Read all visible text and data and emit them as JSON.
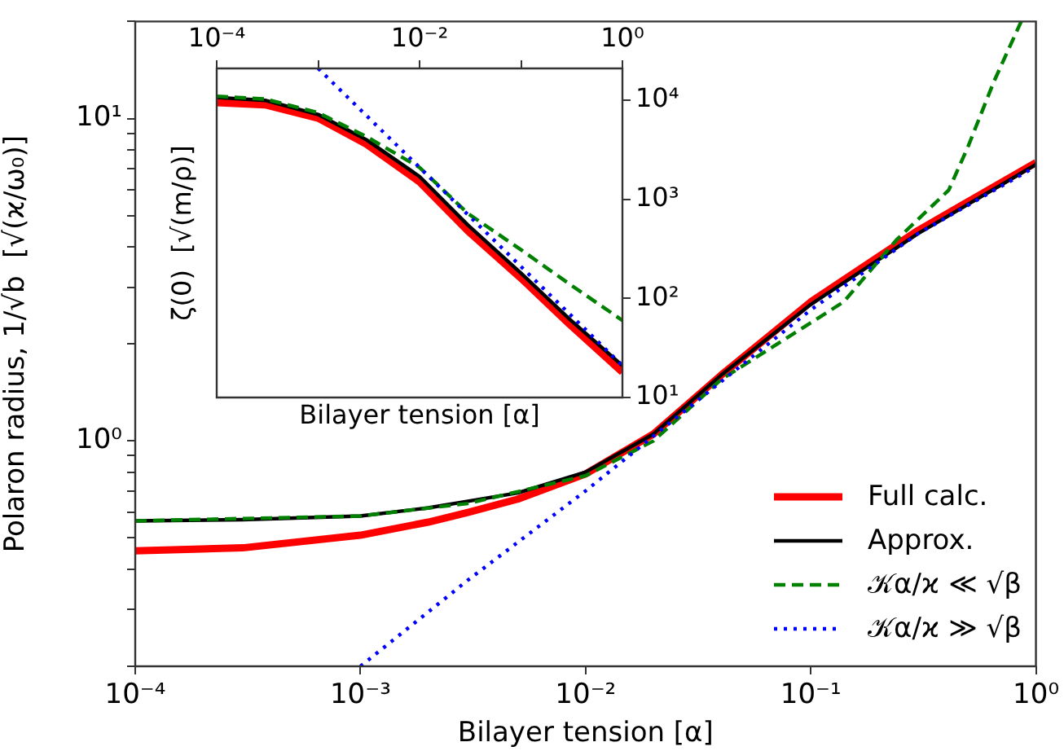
{
  "chart_data": [
    {
      "type": "line",
      "xlabel": "Bilayer tension [α]",
      "ylabel": "Polaron radius, 1/√b  [√(ϰ/ω₀)]",
      "log": "xy",
      "grid": false,
      "legend": "bottom right",
      "marker": "none",
      "xlim": [
        0.0001,
        1
      ],
      "ylim": [
        0.2,
        20
      ],
      "xticks": [
        {
          "value": 0.0001,
          "label": "10⁻⁴"
        },
        {
          "value": 0.001,
          "label": "10⁻³"
        },
        {
          "value": 0.01,
          "label": "10⁻²"
        },
        {
          "value": 0.1,
          "label": "10⁻¹"
        },
        {
          "value": 1,
          "label": "10⁰"
        }
      ],
      "yticks": [
        {
          "value": 0.2,
          "label": null
        },
        {
          "value": 0.3,
          "label": null
        },
        {
          "value": 0.4,
          "label": null
        },
        {
          "value": 0.5,
          "label": null
        },
        {
          "value": 0.6,
          "label": null
        },
        {
          "value": 0.7,
          "label": null
        },
        {
          "value": 0.8,
          "label": null
        },
        {
          "value": 0.9,
          "label": null
        },
        {
          "value": 1,
          "label": "10⁰"
        },
        {
          "value": 2,
          "label": null
        },
        {
          "value": 3,
          "label": null
        },
        {
          "value": 4,
          "label": null
        },
        {
          "value": 5,
          "label": null
        },
        {
          "value": 6,
          "label": null
        },
        {
          "value": 7,
          "label": null
        },
        {
          "value": 8,
          "label": null
        },
        {
          "value": 9,
          "label": null
        },
        {
          "value": 10,
          "label": "10¹"
        },
        {
          "value": 20,
          "label": null
        }
      ],
      "series": [
        {
          "name": "Full calc.",
          "color": "#ff0000",
          "line_style": "solid",
          "x": [
            0.0001,
            0.0003,
            0.001,
            0.002,
            0.003,
            0.005,
            0.01,
            0.02,
            0.04,
            0.1,
            0.3,
            1
          ],
          "values": [
            0.456,
            0.466,
            0.51,
            0.56,
            0.6,
            0.66,
            0.79,
            1.05,
            1.6,
            2.7,
            4.5,
            7.3
          ]
        },
        {
          "name": "Approx.",
          "color": "#000000",
          "line_style": "solid",
          "x": [
            0.0001,
            0.0003,
            0.001,
            0.002,
            0.003,
            0.005,
            0.01,
            0.02,
            0.04,
            0.1,
            0.3,
            1
          ],
          "values": [
            0.565,
            0.57,
            0.585,
            0.62,
            0.65,
            0.69,
            0.8,
            1.05,
            1.6,
            2.65,
            4.4,
            7.2
          ]
        },
        {
          "name": "𝒦α/ϰ ≪ √β",
          "color": "#008000",
          "line_style": "dashed",
          "x": [
            0.0001,
            0.001,
            0.003,
            0.01,
            0.02,
            0.04,
            0.14,
            0.24,
            0.41,
            0.5,
            0.65,
            0.86
          ],
          "values": [
            0.565,
            0.585,
            0.64,
            0.78,
            1.0,
            1.55,
            2.7,
            4.2,
            6.0,
            8.2,
            13,
            20
          ]
        },
        {
          "name": "𝒦α/ϰ ≫ √β",
          "color": "#0000ff",
          "line_style": "dotted",
          "x": [
            0.001,
            0.003,
            0.01,
            0.03,
            0.1,
            0.3,
            1
          ],
          "values": [
            0.2,
            0.37,
            0.7,
            1.3,
            2.55,
            4.4,
            7.1
          ]
        }
      ]
    },
    {
      "type": "line",
      "xlabel": "Bilayer tension [α]",
      "ylabel": "ζ(0)  [√(m/ρ)]",
      "log": "xy",
      "grid": false,
      "marker": "none",
      "xlim": [
        0.0001,
        1
      ],
      "ylim": [
        10,
        21000
      ],
      "xticks": [
        {
          "value": 0.0001,
          "label": "10⁻⁴"
        },
        {
          "value": 0.001,
          "label": null
        },
        {
          "value": 0.01,
          "label": "10⁻²"
        },
        {
          "value": 0.1,
          "label": null
        },
        {
          "value": 1,
          "label": "10⁰"
        }
      ],
      "yticks": [
        {
          "value": 10,
          "label": "10¹"
        },
        {
          "value": 100,
          "label": "10²"
        },
        {
          "value": 1000,
          "label": "10³"
        },
        {
          "value": 10000,
          "label": "10⁴"
        }
      ],
      "series": [
        {
          "color": "#ff0000",
          "line_style": "solid",
          "x": [
            0.0001,
            0.0003,
            0.001,
            0.003,
            0.01,
            0.03,
            0.1,
            0.3,
            1
          ],
          "values": [
            9500,
            9000,
            6600,
            3600,
            1500,
            480,
            160,
            55,
            18
          ]
        },
        {
          "color": "#000000",
          "line_style": "solid",
          "x": [
            0.0001,
            0.0003,
            0.001,
            0.003,
            0.01,
            0.03,
            0.1,
            0.3,
            1
          ],
          "values": [
            10700,
            10000,
            7200,
            4000,
            1700,
            550,
            180,
            62,
            21
          ]
        },
        {
          "color": "#008000",
          "line_style": "dashed",
          "x": [
            0.0001,
            0.0003,
            0.001,
            0.003,
            0.01,
            0.03,
            0.1,
            0.3,
            1
          ],
          "values": [
            11000,
            10300,
            7500,
            4300,
            2100,
            720,
            310,
            140,
            60
          ]
        },
        {
          "color": "#0000ff",
          "line_style": "dotted",
          "x": [
            0.001,
            0.01,
            0.1,
            1
          ],
          "values": [
            21000,
            2100,
            210,
            21
          ]
        }
      ]
    }
  ]
}
